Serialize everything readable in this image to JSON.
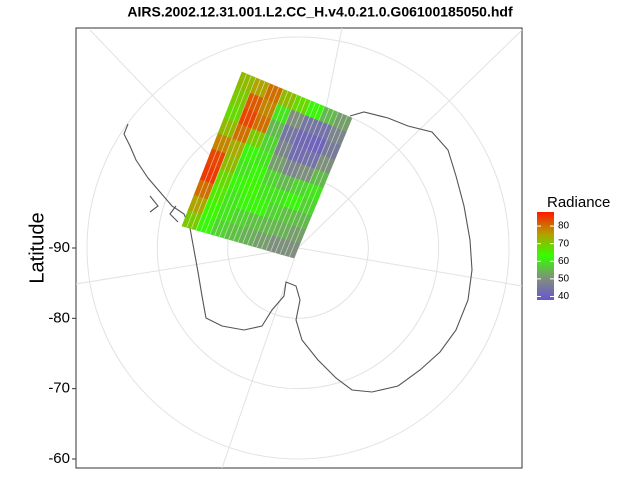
{
  "chart_data": {
    "type": "polar-swath",
    "title": "AIRS.2002.12.31.001.L2.CC_H.v4.0.21.0.G06100185050.hdf",
    "y_label": "Latitude",
    "ylim": [
      -90,
      -60
    ],
    "yticks": [
      -90,
      -80,
      -70,
      -60
    ],
    "grid": true,
    "legend_title": "Radiance",
    "color_range": [
      38,
      88
    ],
    "colors": [
      "#6a55d0",
      "#7f917a",
      "#33ff00",
      "#b49f00",
      "#ff1a00"
    ],
    "colorticks": [
      40,
      50,
      60,
      70,
      80
    ],
    "swath_values": [
      [
        72,
        75,
        80,
        72,
        68,
        62,
        55,
        52
      ],
      [
        70,
        82,
        78,
        60,
        50,
        45,
        44,
        48
      ],
      [
        68,
        84,
        80,
        55,
        45,
        42,
        41,
        46
      ],
      [
        72,
        80,
        70,
        58,
        48,
        43,
        44,
        50
      ],
      [
        78,
        74,
        62,
        60,
        52,
        48,
        50,
        55
      ],
      [
        84,
        72,
        60,
        62,
        58,
        55,
        58,
        60
      ],
      [
        85,
        68,
        62,
        64,
        60,
        60,
        62,
        58
      ],
      [
        80,
        66,
        60,
        62,
        62,
        58,
        56,
        55
      ],
      [
        75,
        64,
        60,
        58,
        56,
        55,
        54,
        52
      ],
      [
        70,
        62,
        58,
        56,
        54,
        52,
        50,
        50
      ]
    ]
  }
}
